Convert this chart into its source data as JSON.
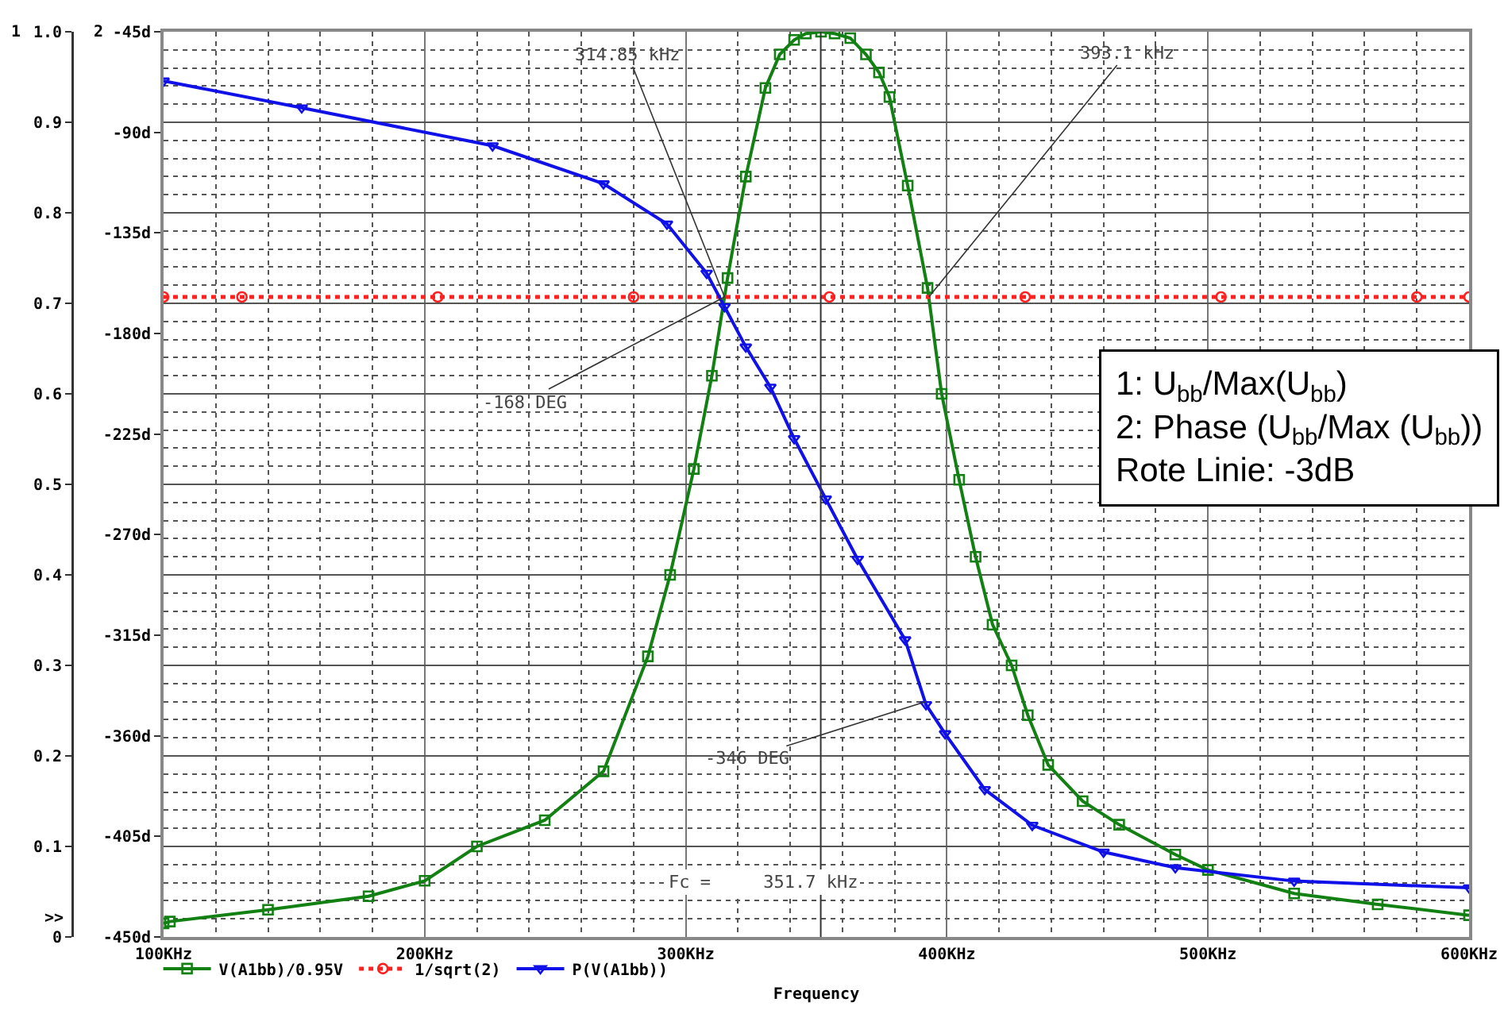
{
  "chart_data": {
    "type": "line",
    "xlabel": "Frequency",
    "ylabel": "1",
    "y2label": "2",
    "xlim": [
      100,
      600
    ],
    "xticks": [
      {
        "value": 100,
        "label": "100KHz"
      },
      {
        "value": 200,
        "label": "200KHz"
      },
      {
        "value": 300,
        "label": "300KHz"
      },
      {
        "value": 400,
        "label": "400KHz"
      },
      {
        "value": 500,
        "label": "500KHz"
      },
      {
        "value": 600,
        "label": "600KHz"
      }
    ],
    "ylim": [
      0,
      1
    ],
    "yticks": [
      0,
      {
        "value": 0.1,
        "label": "0.1"
      },
      {
        "value": 0.2,
        "label": "0.2"
      },
      {
        "value": 0.3,
        "label": "0.3"
      },
      {
        "value": 0.4,
        "label": "0.4"
      },
      {
        "value": 0.5,
        "label": "0.5"
      },
      {
        "value": 0.6,
        "label": "0.6"
      },
      {
        "value": 0.7,
        "label": "0.7"
      },
      {
        "value": 0.8,
        "label": "0.8"
      },
      {
        "value": 0.9,
        "label": "0.9"
      },
      {
        "value": 1,
        "label": "1.0"
      }
    ],
    "y2lim": [
      -450,
      -45
    ],
    "y2ticks": [
      {
        "value": -450,
        "label": "-450d"
      },
      {
        "value": -405,
        "label": "-405d"
      },
      {
        "value": -360,
        "label": "-360d"
      },
      {
        "value": -315,
        "label": "-315d"
      },
      {
        "value": -270,
        "label": "-270d"
      },
      {
        "value": -225,
        "label": "-225d"
      },
      {
        "value": -180,
        "label": "-180d"
      },
      {
        "value": -135,
        "label": "-135d"
      },
      {
        "value": -90,
        "label": "-90d"
      },
      {
        "value": -45,
        "label": "-45d"
      }
    ],
    "grid": true,
    "legend": "bottom",
    "series": [
      {
        "name": "V(A1bb)/0.95V",
        "color": "#138013",
        "marker": "square",
        "line_style": "solid",
        "x": [
          100,
          102.4,
          140,
          178.5,
          200,
          220,
          246,
          268.5,
          285.5,
          294,
          303.1,
          310,
          316,
          323,
          330.5,
          336,
          341.5,
          346,
          351.8,
          357,
          363,
          369,
          374,
          378,
          385,
          392.6,
          398,
          404.7,
          411,
          417.5,
          424.8,
          431,
          438.8,
          452,
          466,
          487.5,
          500,
          533,
          565,
          600
        ],
        "values": [
          0.015,
          0.017,
          0.03,
          0.045,
          0.062,
          0.1,
          0.129,
          0.183,
          0.31,
          0.4,
          0.517,
          0.62,
          0.728,
          0.84,
          0.938,
          0.975,
          0.991,
          0.998,
          1.0,
          0.998,
          0.993,
          0.975,
          0.955,
          0.928,
          0.83,
          0.717,
          0.6,
          0.505,
          0.42,
          0.345,
          0.3,
          0.245,
          0.19,
          0.15,
          0.124,
          0.091,
          0.074,
          0.048,
          0.036,
          0.024
        ]
      },
      {
        "name": "1/sqrt(2)",
        "color": "#ff2020",
        "marker": "circle",
        "line_style": "dotted",
        "x": [
          100,
          130,
          205,
          280,
          355,
          430,
          505,
          580,
          600
        ],
        "values": [
          0.707,
          0.707,
          0.707,
          0.707,
          0.707,
          0.707,
          0.707,
          0.707,
          0.707
        ]
      },
      {
        "name": "P(V(A1bb))",
        "color": "#1010e8",
        "marker": "triangle",
        "line_style": "solid",
        "axis": "y2",
        "x": [
          100,
          152.9,
          226,
          268.5,
          292.8,
          308,
          314.85,
          323,
          332.4,
          341.5,
          353.6,
          365.8,
          384,
          392,
          399.3,
          414.5,
          432.7,
          460,
          487.5,
          533,
          600
        ],
        "values": [
          -67,
          -79,
          -96,
          -113,
          -131,
          -153,
          -168,
          -186,
          -204,
          -227,
          -254,
          -281,
          -317,
          -346,
          -359,
          -384,
          -400,
          -412,
          -419,
          -425,
          -428
        ]
      }
    ],
    "ref_lines": [
      {
        "axis": "x",
        "value": 351.7,
        "label": "Fc =     351.7 kHz",
        "color": "#333333"
      }
    ],
    "annotations": [
      "1: U$_{bb}$/Max(U$_{bb}$)\n2: Phase (U$_{bb}$/Max (U$_{bb}$))\nRote Linie: -3dB",
      ">>",
      {
        "text": "314.85 kHz",
        "x": 314.85,
        "y": 0.707
      },
      {
        "text": "393.1 kHz",
        "x": 393.1,
        "y": 0.707
      },
      {
        "text": "-168 DEG",
        "x": 314.85,
        "y": 0.707
      },
      {
        "text": "-346 DEG",
        "x": 392,
        "y": 0.26
      }
    ]
  }
}
